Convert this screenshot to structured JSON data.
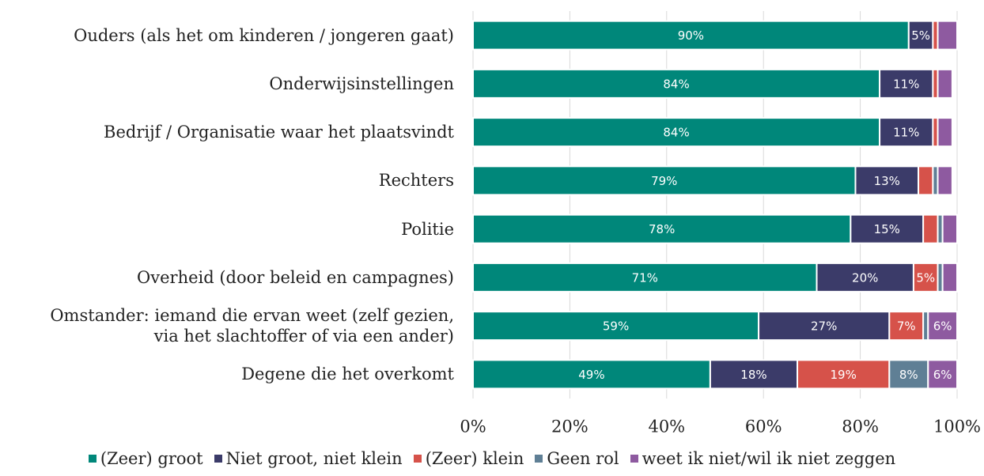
{
  "chart_data": {
    "type": "stacked-bar-horizontal",
    "categories": [
      "Ouders (als het om kinderen / jongeren gaat)",
      "Onderwijsinstellingen",
      "Bedrijf / Organisatie waar het plaatsvindt",
      "Rechters",
      "Politie",
      "Overheid (door beleid en campagnes)",
      "Omstander: iemand die ervan weet (zelf gezien,\nvia het slachtoffer of via een ander)",
      "Degene die het overkomt"
    ],
    "series": [
      {
        "name": "(Zeer) groot",
        "color": "#00877a",
        "values": [
          90,
          84,
          84,
          79,
          78,
          71,
          59,
          49
        ],
        "value_labels": [
          "90%",
          "84%",
          "84%",
          "79%",
          "78%",
          "71%",
          "59%",
          "49%"
        ]
      },
      {
        "name": "Niet groot, niet klein",
        "color": "#3b3b69",
        "values": [
          5,
          11,
          11,
          13,
          15,
          20,
          27,
          18
        ],
        "value_labels": [
          "5%",
          "11%",
          "11%",
          "13%",
          "15%",
          "20%",
          "27%",
          "18%"
        ]
      },
      {
        "name": "(Zeer) klein",
        "color": "#d6524a",
        "values": [
          1,
          1,
          1,
          3,
          3,
          5,
          7,
          19
        ],
        "value_labels": [
          null,
          null,
          null,
          null,
          null,
          "5%",
          "7%",
          "19%"
        ]
      },
      {
        "name": "Geen rol",
        "color": "#5f7f95",
        "values": [
          0,
          0,
          0,
          1,
          1,
          1,
          1,
          8
        ],
        "value_labels": [
          null,
          null,
          null,
          null,
          null,
          null,
          null,
          "8%"
        ]
      },
      {
        "name": "weet ik niet/wil ik niet zeggen",
        "color": "#8e5aa0",
        "values": [
          4,
          3,
          3,
          3,
          3,
          3,
          6,
          6
        ],
        "value_labels": [
          null,
          null,
          null,
          null,
          null,
          null,
          "6%",
          "6%"
        ]
      }
    ],
    "xlim": [
      0,
      100
    ],
    "xticks": [
      {
        "value": 0,
        "label": "0%"
      },
      {
        "value": 20,
        "label": "20%"
      },
      {
        "value": 40,
        "label": "40%"
      },
      {
        "value": 60,
        "label": "60%"
      },
      {
        "value": 80,
        "label": "80%"
      },
      {
        "value": 100,
        "label": "100%"
      }
    ],
    "grid": true,
    "legend": "bottom"
  }
}
